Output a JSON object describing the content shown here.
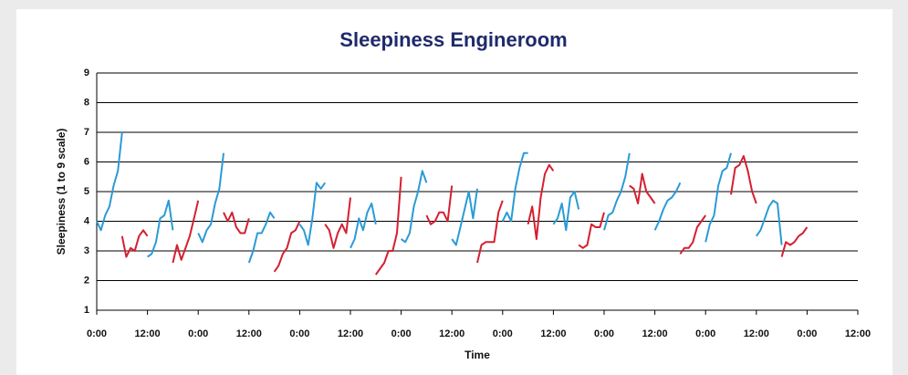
{
  "chart_data": {
    "type": "line",
    "title": "Sleepiness Engineroom",
    "x_label": "Time",
    "y_label": "Sleepiness (1 to 9 scale)",
    "xlim": [
      0,
      180
    ],
    "ylim": [
      1,
      9
    ],
    "yticks": [
      1,
      2,
      3,
      4,
      5,
      6,
      7,
      8,
      9
    ],
    "grid": true,
    "xticks": [
      {
        "value": 0,
        "label": "0:00"
      },
      {
        "value": 12,
        "label": "12:00"
      },
      {
        "value": 24,
        "label": "0:00"
      },
      {
        "value": 36,
        "label": "12:00"
      },
      {
        "value": 48,
        "label": "0:00"
      },
      {
        "value": 60,
        "label": "12:00"
      },
      {
        "value": 72,
        "label": "0:00"
      },
      {
        "value": 84,
        "label": "12:00"
      },
      {
        "value": 96,
        "label": "0:00"
      },
      {
        "value": 108,
        "label": "12:00"
      },
      {
        "value": 120,
        "label": "0:00"
      },
      {
        "value": 132,
        "label": "12:00"
      },
      {
        "value": 144,
        "label": "0:00"
      },
      {
        "value": 156,
        "label": "12:00"
      },
      {
        "value": 168,
        "label": "0:00"
      },
      {
        "value": 180,
        "label": "12:00"
      }
    ],
    "series": [
      {
        "color": "#2a9bd6",
        "x": [
          0,
          1,
          2,
          3,
          4,
          5,
          6,
          null,
          12,
          13,
          14,
          15,
          16,
          17,
          18,
          null,
          24,
          25,
          26,
          27,
          28,
          29,
          30,
          null,
          36,
          37,
          38,
          39,
          40,
          41,
          42,
          null,
          48,
          49,
          50,
          51,
          52,
          53,
          54,
          null,
          60,
          61,
          62,
          63,
          64,
          65,
          66,
          null,
          72,
          73,
          74,
          75,
          76,
          77,
          78,
          null,
          84,
          85,
          86,
          87,
          88,
          89,
          90,
          null,
          96,
          97,
          98,
          99,
          100,
          101,
          102,
          null,
          108,
          109,
          110,
          111,
          112,
          113,
          114,
          null,
          120,
          121,
          122,
          123,
          124,
          125,
          126,
          null,
          132,
          133,
          134,
          135,
          136,
          137,
          138,
          null,
          144,
          145,
          146,
          147,
          148,
          149,
          150,
          null,
          156,
          157,
          158,
          159,
          160,
          161,
          162
        ],
        "values": [
          4.0,
          3.7,
          4.2,
          4.5,
          5.2,
          5.7,
          7.0,
          null,
          2.8,
          2.9,
          3.3,
          4.1,
          4.2,
          4.7,
          3.7,
          null,
          3.6,
          3.3,
          3.7,
          3.9,
          4.6,
          5.1,
          6.3,
          null,
          2.6,
          3.0,
          3.6,
          3.6,
          3.9,
          4.3,
          4.1,
          null,
          3.9,
          3.7,
          3.2,
          4.1,
          5.3,
          5.1,
          5.3,
          null,
          3.1,
          3.4,
          4.1,
          3.7,
          4.3,
          4.6,
          3.9,
          null,
          3.4,
          3.3,
          3.6,
          4.5,
          5.0,
          5.7,
          5.3,
          null,
          3.4,
          3.2,
          3.8,
          4.4,
          5.0,
          4.1,
          5.1,
          null,
          4.0,
          4.3,
          4.0,
          5.1,
          5.8,
          6.3,
          6.3,
          null,
          3.9,
          4.1,
          4.6,
          3.7,
          4.8,
          5.0,
          4.4,
          null,
          3.7,
          4.2,
          4.3,
          4.7,
          5.0,
          5.5,
          6.3,
          null,
          3.7,
          4.0,
          4.4,
          4.7,
          4.8,
          5.0,
          5.3,
          null,
          3.3,
          3.9,
          4.2,
          5.2,
          5.7,
          5.8,
          6.3,
          null,
          3.5,
          3.7,
          4.1,
          4.5,
          4.7,
          4.6,
          3.2
        ]
      },
      {
        "color": "#d42030",
        "x": [
          6,
          7,
          8,
          9,
          10,
          11,
          12,
          null,
          18,
          19,
          20,
          21,
          22,
          23,
          24,
          null,
          30,
          31,
          32,
          33,
          34,
          35,
          36,
          null,
          42,
          43,
          44,
          45,
          46,
          47,
          48,
          null,
          54,
          55,
          56,
          57,
          58,
          59,
          60,
          null,
          66,
          67,
          68,
          69,
          70,
          71,
          72,
          null,
          78,
          79,
          80,
          81,
          82,
          83,
          84,
          null,
          90,
          91,
          92,
          93,
          94,
          95,
          96,
          null,
          102,
          103,
          104,
          105,
          106,
          107,
          108,
          null,
          114,
          115,
          116,
          117,
          118,
          119,
          120,
          null,
          126,
          127,
          128,
          129,
          130,
          131,
          132,
          null,
          138,
          139,
          140,
          141,
          142,
          143,
          144,
          null,
          150,
          151,
          152,
          153,
          154,
          155,
          156,
          null,
          162,
          163,
          164,
          165,
          166,
          167,
          168
        ],
        "values": [
          3.5,
          2.8,
          3.1,
          3.0,
          3.5,
          3.7,
          3.5,
          null,
          2.6,
          3.2,
          2.7,
          3.1,
          3.5,
          4.1,
          4.7,
          null,
          4.3,
          4.0,
          4.3,
          3.8,
          3.6,
          3.6,
          4.1,
          null,
          2.3,
          2.5,
          2.9,
          3.1,
          3.6,
          3.7,
          4.0,
          null,
          3.9,
          3.7,
          3.1,
          3.6,
          3.9,
          3.6,
          4.8,
          null,
          2.2,
          2.4,
          2.6,
          3.0,
          3.0,
          3.6,
          5.5,
          null,
          4.2,
          3.9,
          4.0,
          4.3,
          4.3,
          4.0,
          5.2,
          null,
          2.6,
          3.2,
          3.3,
          3.3,
          3.3,
          4.3,
          4.7,
          null,
          3.9,
          4.5,
          3.4,
          4.8,
          5.6,
          5.9,
          5.7,
          null,
          3.2,
          3.1,
          3.2,
          3.9,
          3.8,
          3.8,
          4.3,
          null,
          5.2,
          5.1,
          4.6,
          5.6,
          5.0,
          4.8,
          4.6,
          null,
          2.9,
          3.1,
          3.1,
          3.3,
          3.8,
          4.0,
          4.2,
          null,
          4.9,
          5.8,
          5.9,
          6.2,
          5.7,
          5.0,
          4.6,
          null,
          2.8,
          3.3,
          3.2,
          3.3,
          3.5,
          3.6,
          3.8
        ]
      }
    ]
  }
}
